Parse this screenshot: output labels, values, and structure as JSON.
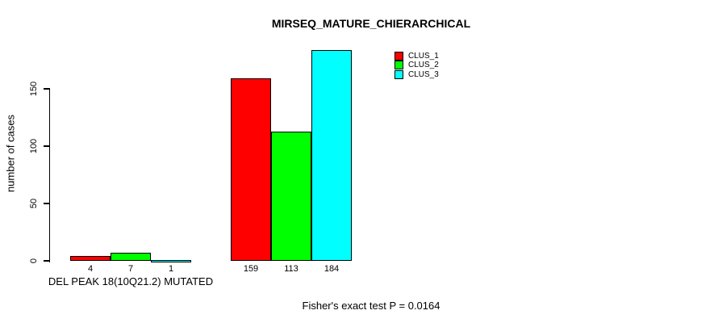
{
  "chart_data": {
    "type": "bar",
    "title": "MIRSEQ_MATURE_CHIERARCHICAL",
    "ylabel": "number of cases",
    "xlabel": "",
    "group_labels": [
      "DEL PEAK 18(10Q21.2) MUTATED",
      ""
    ],
    "series": [
      {
        "name": "CLUS_1",
        "color": "#ff0000",
        "values": [
          4,
          159
        ]
      },
      {
        "name": "CLUS_2",
        "color": "#00ff00",
        "values": [
          7,
          113
        ]
      },
      {
        "name": "CLUS_3",
        "color": "#00ffff",
        "values": [
          1,
          184
        ]
      }
    ],
    "bar_value_labels": [
      [
        "4",
        "7",
        "1"
      ],
      [
        "159",
        "113",
        "184"
      ]
    ],
    "yticks": [
      0,
      50,
      100,
      150
    ],
    "axis_range": [
      0,
      150
    ],
    "grid": false,
    "legend": [
      "CLUS_1",
      "CLUS_2",
      "CLUS_3"
    ],
    "legend_position": "top-right",
    "annotation": "Fisher's exact test P = 0.0164"
  },
  "colors": {
    "background": "#ffffff",
    "axis": "#000000",
    "text": "#000000",
    "clus1": "#ff0000",
    "clus2": "#00ff00",
    "clus3": "#00ffff"
  }
}
